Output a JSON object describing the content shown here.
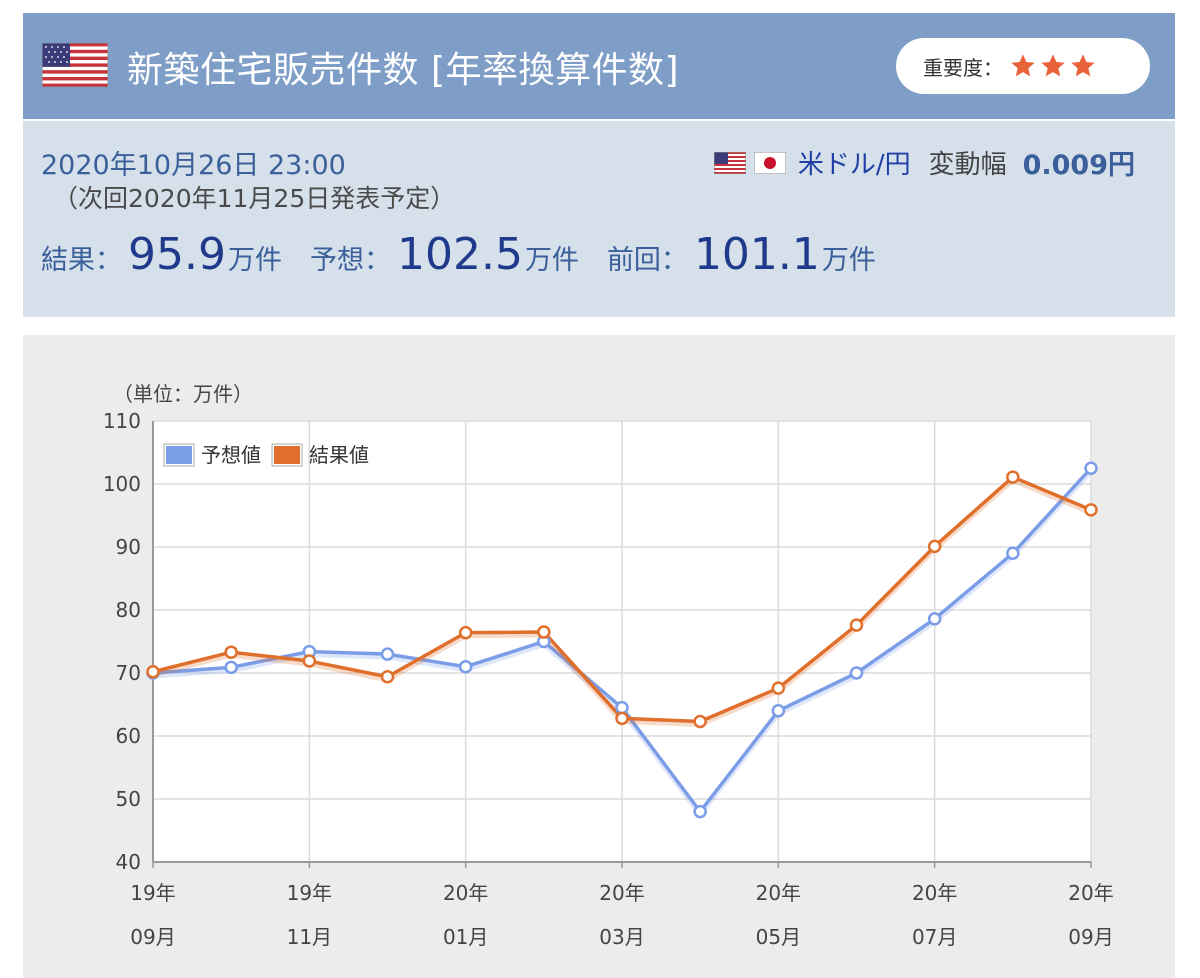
{
  "header": {
    "title": "新築住宅販売件数 [年率換算件数]",
    "importance_label": "重要度：",
    "importance_stars": 3,
    "flag_icon": "us-flag-icon"
  },
  "info": {
    "datetime": "2020年10月26日 23:00",
    "next_release": "（次回2020年11月25日発表予定）",
    "pair": "米ドル/円",
    "volatility_label": "変動幅",
    "volatility_value": "0.009円",
    "result_label": "結果：",
    "result_value": "95.9",
    "result_unit": "万件",
    "forecast_label": "予想：",
    "forecast_value": "102.5",
    "forecast_unit": "万件",
    "previous_label": "前回：",
    "previous_value": "101.1",
    "previous_unit": "万件"
  },
  "colors": {
    "header_bg": "#7f9ec7",
    "info_bg": "#d6e0eb",
    "forecast_line": "#7b9de8",
    "result_line": "#e06f2c",
    "star": "#e8633a"
  },
  "chart_data": {
    "type": "line",
    "unit_label": "（単位：万件）",
    "ylim": [
      40,
      110
    ],
    "yticks": [
      40,
      50,
      60,
      70,
      80,
      90,
      100,
      110
    ],
    "x_labels": [
      {
        "year": "19年",
        "month": "09月"
      },
      {
        "year": "19年",
        "month": "11月"
      },
      {
        "year": "20年",
        "month": "01月"
      },
      {
        "year": "20年",
        "month": "03月"
      },
      {
        "year": "20年",
        "month": "05月"
      },
      {
        "year": "20年",
        "month": "07月"
      },
      {
        "year": "20年",
        "month": "09月"
      }
    ],
    "categories": [
      "19年09月",
      "19年10月",
      "19年11月",
      "19年12月",
      "20年01月",
      "20年02月",
      "20年03月",
      "20年04月",
      "20年05月",
      "20年06月",
      "20年07月",
      "20年08月",
      "20年09月"
    ],
    "series": [
      {
        "name": "予想値",
        "values": [
          70.0,
          70.9,
          73.4,
          73.0,
          71.0,
          75.0,
          64.5,
          48.0,
          64.0,
          70.0,
          78.6,
          89.0,
          102.5
        ]
      },
      {
        "name": "結果値",
        "values": [
          70.2,
          73.3,
          71.9,
          69.4,
          76.4,
          76.5,
          62.8,
          62.3,
          67.6,
          77.6,
          90.1,
          101.1,
          95.9
        ]
      }
    ],
    "grid": true,
    "legend": "top-left"
  }
}
